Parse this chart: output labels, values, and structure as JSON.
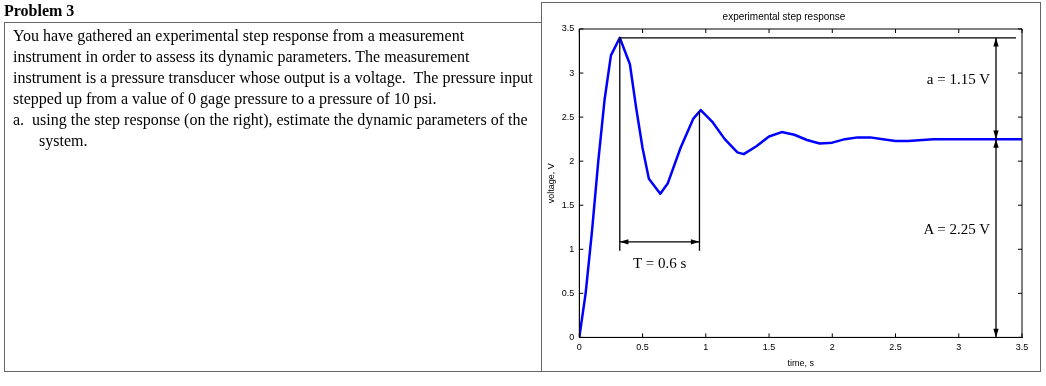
{
  "chart_data": {
    "type": "line",
    "title": "experimental step response",
    "xlabel": "time, s",
    "ylabel": "voltage, V",
    "x": [
      0,
      0.05,
      0.1,
      0.15,
      0.2,
      0.25,
      0.32,
      0.4,
      0.45,
      0.5,
      0.55,
      0.64,
      0.7,
      0.8,
      0.9,
      0.96,
      1.05,
      1.15,
      1.25,
      1.3,
      1.4,
      1.5,
      1.6,
      1.7,
      1.8,
      1.9,
      2.0,
      2.1,
      2.2,
      2.3,
      2.4,
      2.5,
      2.6,
      2.8,
      3.0,
      3.2,
      3.5
    ],
    "series": [
      {
        "color": "#0000ff",
        "values": [
          0,
          0.5,
          1.2,
          2.0,
          2.7,
          3.2,
          3.4,
          3.1,
          2.6,
          2.15,
          1.8,
          1.63,
          1.75,
          2.15,
          2.48,
          2.58,
          2.45,
          2.25,
          2.1,
          2.08,
          2.17,
          2.28,
          2.33,
          2.3,
          2.24,
          2.2,
          2.21,
          2.25,
          2.27,
          2.27,
          2.25,
          2.23,
          2.23,
          2.25,
          2.25,
          2.25,
          2.25
        ]
      }
    ],
    "xlim": [
      0,
      3.5
    ],
    "xticks": [
      0,
      0.5,
      1,
      1.5,
      2,
      2.5,
      3,
      3.5
    ],
    "ylim": [
      0,
      3.5
    ],
    "yticks": [
      0,
      0.5,
      1,
      1.5,
      2,
      2.5,
      3,
      3.5
    ],
    "grid": false,
    "legend": false,
    "marker": "none",
    "line_style": "solid",
    "ref_lines": [
      {
        "axis": "y",
        "value": 3.4,
        "color": "#000000"
      },
      {
        "axis": "x",
        "value": 0.32,
        "color": "#000000"
      },
      {
        "axis": "x",
        "value": 0.95,
        "color": "#000000"
      }
    ],
    "annotations": [
      "a = 1.15 V",
      "A = 2.25 V",
      "T = 0.6 s",
      "Problem 3",
      "You have gathered an experimental step response from a measurement instrument in order to assess its dynamic parameters. The measurement instrument is a pressure transducer whose output is a voltage.  The pressure input stepped up from a value of 0 gage pressure to a pressure of 10 psi.",
      "a.  using the step response (on the right), estimate the dynamic parameters of the system."
    ]
  }
}
